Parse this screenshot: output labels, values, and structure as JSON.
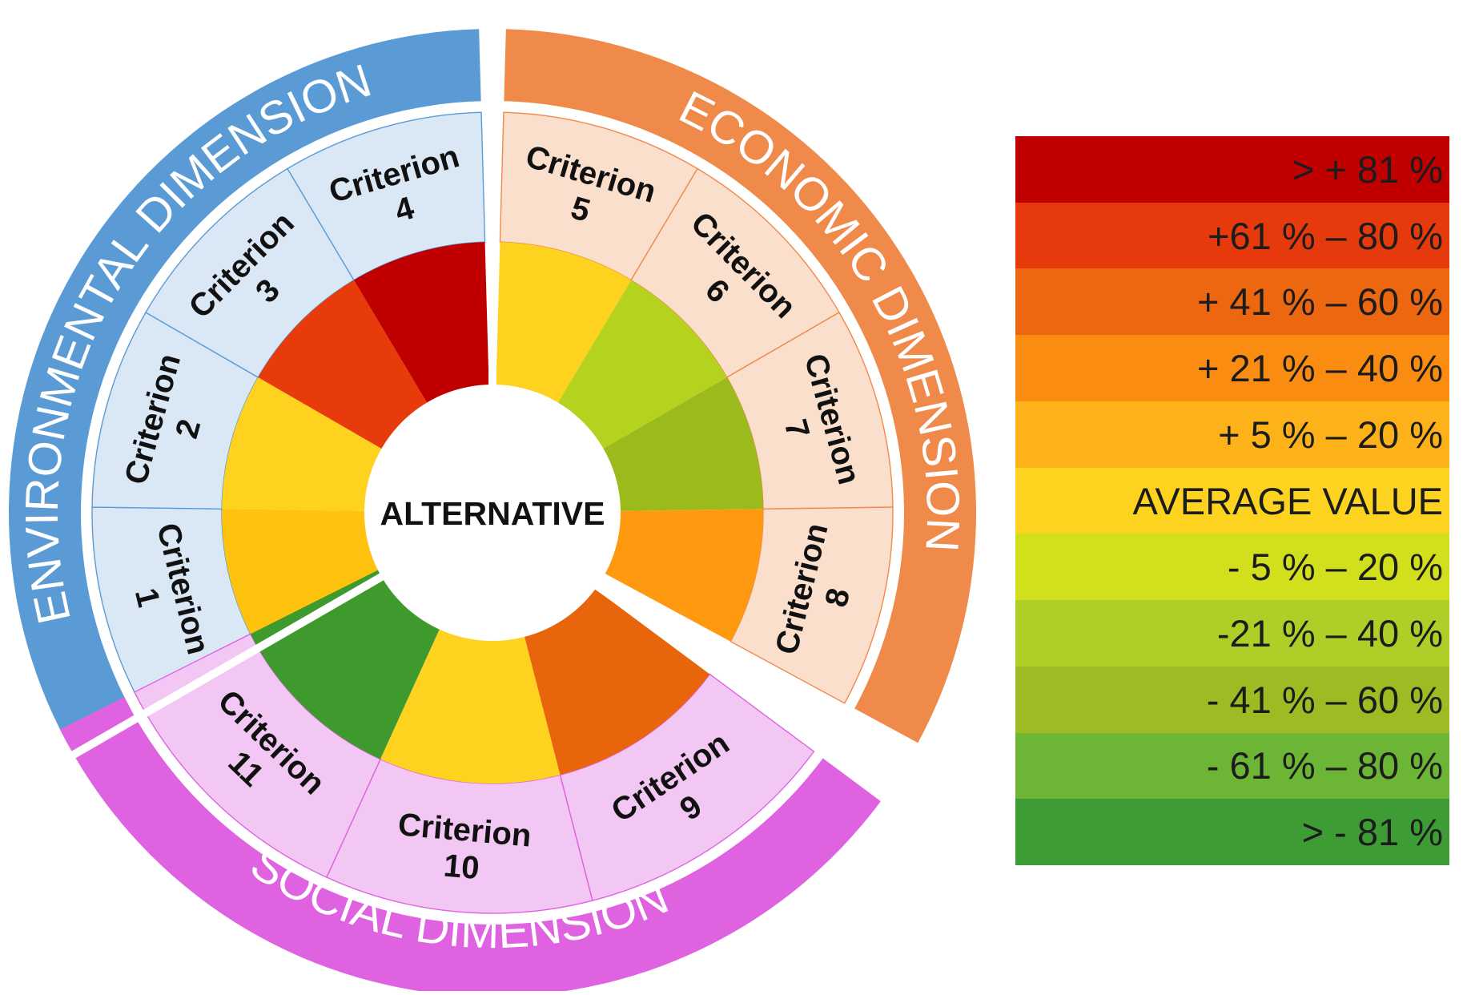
{
  "center": {
    "label": "ALTERNATIVE"
  },
  "dimensions": [
    {
      "id": "environmental",
      "label": "ENVIRONMENTAL DIMENSION",
      "band_color": "#5b9bd5",
      "label_color": "#ffffff",
      "label_side": "outer",
      "cell_color": "#dae8f6",
      "criteria": [
        {
          "title": "Criterion",
          "number": "1",
          "level_color": "#ffc20e"
        },
        {
          "title": "Criterion",
          "number": "2",
          "level_color": "#ffd21f"
        },
        {
          "title": "Criterion",
          "number": "3",
          "level_color": "#e83b0c"
        },
        {
          "title": "Criterion",
          "number": "4",
          "level_color": "#c00000"
        }
      ]
    },
    {
      "id": "economic",
      "label": "ECONOMIC DIMENSION",
      "band_color": "#ef8a4a",
      "label_color": "#ffffff",
      "label_side": "outer",
      "cell_color": "#fbdfcd",
      "criteria": [
        {
          "title": "Criterion",
          "number": "5",
          "level_color": "#ffd21f"
        },
        {
          "title": "Criterion",
          "number": "6",
          "level_color": "#b5d21e"
        },
        {
          "title": "Criterion",
          "number": "7",
          "level_color": "#9bbb1c"
        },
        {
          "title": "Criterion",
          "number": "8",
          "level_color": "#ff9910"
        }
      ]
    },
    {
      "id": "social",
      "label": "SOCIAL DIMENSION",
      "band_color": "#df62e1",
      "label_color": "#ffffff",
      "label_side": "inner",
      "cell_color": "#f3c7f4",
      "criteria": [
        {
          "title": "Criterion",
          "number": "9",
          "level_color": "#e8650b"
        },
        {
          "title": "Criterion",
          "number": "10",
          "level_color": "#ffd21f"
        },
        {
          "title": "Criterion",
          "number": "11",
          "level_color": "#3f9a2e"
        }
      ]
    }
  ],
  "legend": [
    {
      "label": "> + 81 %",
      "color": "#c00000"
    },
    {
      "label": "+61 % – 80 %",
      "color": "#e73a0c"
    },
    {
      "label": "+ 41 % – 60 %",
      "color": "#ec6710"
    },
    {
      "label": "+ 21 % – 40 %",
      "color": "#fb8c12"
    },
    {
      "label": "+ 5 % – 20 %",
      "color": "#fdb21a"
    },
    {
      "label": "AVERAGE VALUE",
      "color": "#fdd31f"
    },
    {
      "label": "- 5 % – 20 %",
      "color": "#d2df1c"
    },
    {
      "label": "-21 % – 40 %",
      "color": "#afce27"
    },
    {
      "label": "- 41 % – 60 %",
      "color": "#9dbb22"
    },
    {
      "label": "- 61 % – 80 %",
      "color": "#6db535"
    },
    {
      "label": "> - 81 %",
      "color": "#3d9c33"
    }
  ]
}
